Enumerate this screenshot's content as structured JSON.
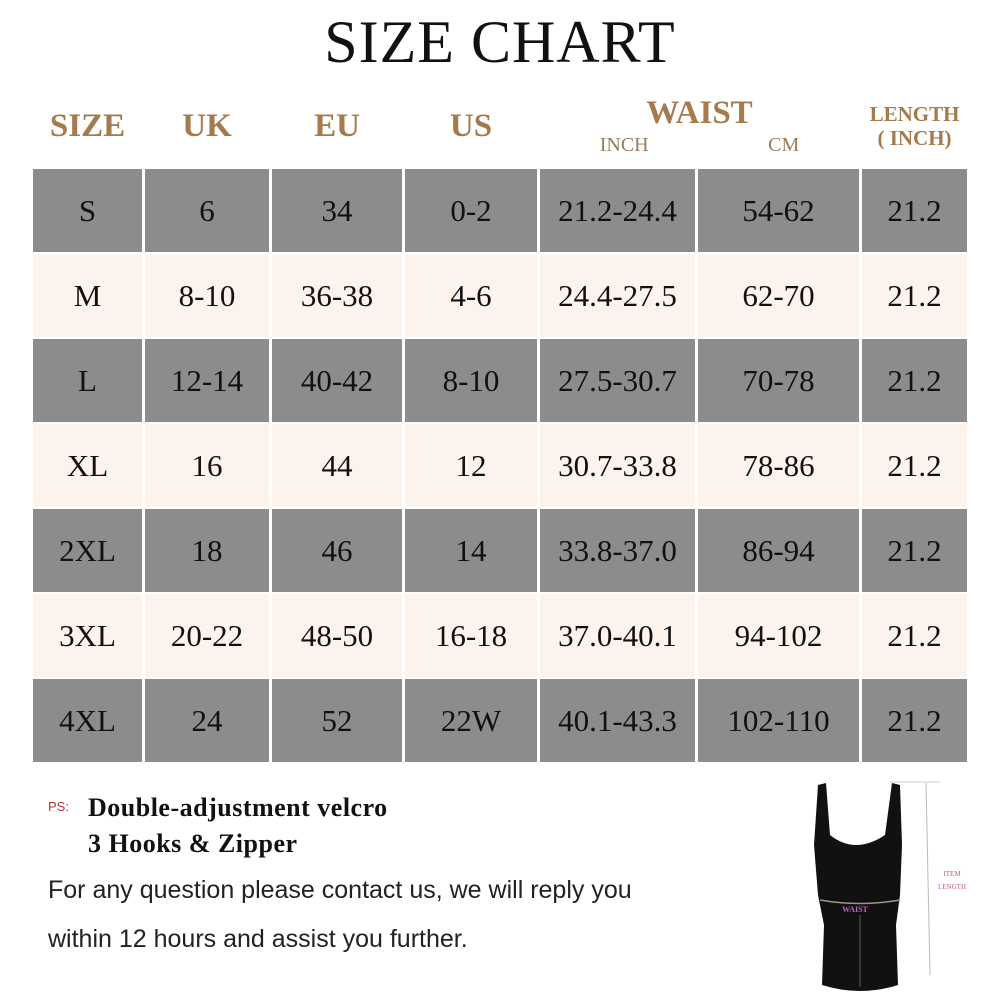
{
  "title": "SIZE CHART",
  "headers": {
    "size": "SIZE",
    "uk": "UK",
    "eu": "EU",
    "us": "US",
    "waist": "WAIST",
    "inch": "INCH",
    "cm": "CM",
    "length1": "LENGTH",
    "length2": "( INCH)"
  },
  "rows": [
    [
      "S",
      "6",
      "34",
      "0-2",
      "21.2-24.4",
      "54-62",
      "21.2"
    ],
    [
      "M",
      "8-10",
      "36-38",
      "4-6",
      "24.4-27.5",
      "62-70",
      "21.2"
    ],
    [
      "L",
      "12-14",
      "40-42",
      "8-10",
      "27.5-30.7",
      "70-78",
      "21.2"
    ],
    [
      "XL",
      "16",
      "44",
      "12",
      "30.7-33.8",
      "78-86",
      "21.2"
    ],
    [
      "2XL",
      "18",
      "46",
      "14",
      "33.8-37.0",
      "86-94",
      "21.2"
    ],
    [
      "3XL",
      "20-22",
      "48-50",
      "16-18",
      "37.0-40.1",
      "94-102",
      "21.2"
    ],
    [
      "4XL",
      "24",
      "52",
      "22W",
      "40.1-43.3",
      "102-110",
      "21.2"
    ]
  ],
  "ps": {
    "label": "PS:",
    "line1": "Double-adjustment velcro",
    "line2": "3 Hooks & Zipper"
  },
  "note": {
    "line1": "For any question please contact us, we will reply you",
    "line2": "within 12 hours and assist you further."
  },
  "image_labels": {
    "waist": "WAIST",
    "item": "ITEM",
    "length": "LENGTH"
  },
  "colors": {
    "header_text": "#a57a4c",
    "gray_row": "#8c8c8c",
    "cream_row": "#fcf4ec",
    "label_purple": "#c060c0"
  }
}
